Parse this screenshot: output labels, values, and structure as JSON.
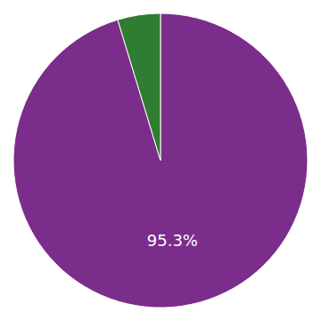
{
  "chart_data": {
    "type": "pie",
    "values": [
      95.3,
      4.7
    ],
    "colors": [
      "#7b2d8b",
      "#2e7d32"
    ],
    "data_labels": true,
    "value_labels": [
      "95.3%",
      null
    ]
  }
}
